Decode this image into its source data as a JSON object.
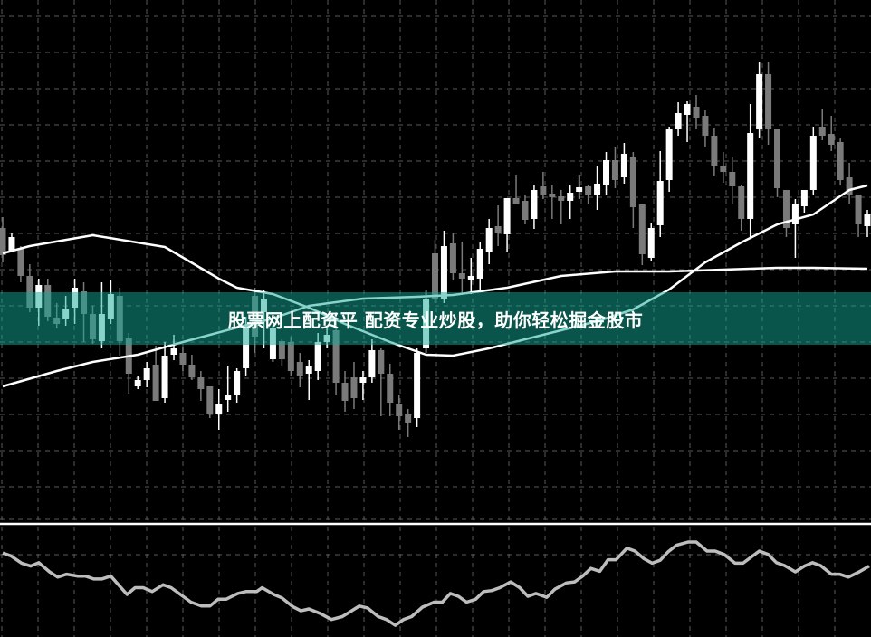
{
  "banner": {
    "text": "股票网上配资平 配资专业炒股，助你轻松掘金股市"
  },
  "colors": {
    "background": "#000000",
    "grid": "#5a5a5a",
    "up_candle": "#ffffff",
    "down_candle": "#7a7a7a",
    "ma_line": "#ffffff",
    "oscillator_line": "#bdbdbd",
    "separator": "#ffffff",
    "banner": "#14aa96"
  },
  "chart_data": [
    {
      "type": "candlestick",
      "title": "",
      "grid": true,
      "ylim": [
        2,
        60
      ],
      "candles_ohlc": [
        [
          34.8,
          36,
          31,
          31.8
        ],
        [
          32.3,
          34.2,
          32.3,
          33.8
        ],
        [
          32.5,
          32.8,
          28.8,
          29.5
        ],
        [
          29.5,
          30.8,
          25.5,
          26
        ],
        [
          26,
          29.2,
          24,
          28.5
        ],
        [
          28.5,
          29.2,
          24.5,
          25
        ],
        [
          24.9,
          26.5,
          23.7,
          24.2
        ],
        [
          24.7,
          27.3,
          24,
          25.9
        ],
        [
          26,
          29.2,
          24.2,
          28.2
        ],
        [
          27.8,
          28.8,
          22.2,
          25.3
        ],
        [
          25.3,
          26.2,
          22,
          22.5
        ],
        [
          22.3,
          28.8,
          21.5,
          25.3
        ],
        [
          24.8,
          29,
          24.2,
          27.5
        ],
        [
          27.3,
          28.2,
          20.7,
          22.3
        ],
        [
          22.6,
          23.2,
          16.5,
          18.7
        ],
        [
          17.3,
          18.4,
          17,
          18
        ],
        [
          18,
          20,
          17.2,
          19.3
        ],
        [
          19.7,
          21.8,
          15.7,
          15.7
        ],
        [
          16,
          22.2,
          15.5,
          20.7
        ],
        [
          20.8,
          23,
          20.2,
          21.5
        ],
        [
          21,
          21.7,
          19,
          19.7
        ],
        [
          19.7,
          20.8,
          18,
          18.3
        ],
        [
          18.3,
          19,
          15.7,
          17
        ],
        [
          17.3,
          17.3,
          13.8,
          14.3
        ],
        [
          14.3,
          17,
          12.5,
          15.3
        ],
        [
          15.8,
          19.5,
          14.5,
          16.3
        ],
        [
          16.3,
          19.3,
          15.5,
          19
        ],
        [
          19.3,
          25,
          18.5,
          24
        ],
        [
          27.3,
          28.2,
          21,
          22.8
        ],
        [
          25.5,
          28,
          21.5,
          27
        ],
        [
          20.3,
          24,
          20,
          23.7
        ],
        [
          22.3,
          22.5,
          19.5,
          20.3
        ],
        [
          22.2,
          22.8,
          18.5,
          19
        ],
        [
          20,
          21,
          17.2,
          18.5
        ],
        [
          18.7,
          20.2,
          15.8,
          19.5
        ],
        [
          19,
          23.2,
          18,
          22.2
        ],
        [
          22.2,
          23.8,
          21.5,
          23
        ],
        [
          23.5,
          25.5,
          16.4,
          17.7
        ],
        [
          17.7,
          19,
          14.5,
          15.7
        ],
        [
          18.3,
          20,
          14.8,
          16
        ],
        [
          17.7,
          19,
          15.8,
          18.3
        ],
        [
          18.3,
          22.5,
          17.7,
          21.3
        ],
        [
          21.3,
          21.5,
          14,
          18.7
        ],
        [
          18.7,
          19.8,
          14,
          15.5
        ],
        [
          15.3,
          16.3,
          12.5,
          14
        ],
        [
          14.3,
          14.8,
          11.7,
          13.3
        ],
        [
          13.8,
          21.5,
          12.8,
          21
        ],
        [
          21.5,
          28,
          21,
          27
        ],
        [
          32,
          33.5,
          26.5,
          27
        ],
        [
          27,
          34.5,
          26.5,
          32.8
        ],
        [
          33.1,
          34.2,
          29,
          29.8
        ],
        [
          29.8,
          33.3,
          27.5,
          29.2
        ],
        [
          29,
          31.5,
          27.5,
          29.5
        ],
        [
          29.2,
          33.2,
          27.8,
          32.5
        ],
        [
          32.2,
          35.8,
          30.8,
          34.8
        ],
        [
          35,
          37.3,
          32.8,
          34.2
        ],
        [
          34.1,
          38.1,
          32.2,
          38.1
        ],
        [
          38.1,
          40.7,
          37.4,
          37.4
        ],
        [
          37.8,
          38.5,
          35.2,
          35.7
        ],
        [
          35.8,
          39.5,
          34.7,
          39
        ],
        [
          39.4,
          41,
          38,
          38.5
        ],
        [
          38.6,
          39.5,
          35.8,
          38.2
        ],
        [
          38.3,
          39,
          35.2,
          37.8
        ],
        [
          37.8,
          39.5,
          35.8,
          38.7
        ],
        [
          38.8,
          40.7,
          38,
          39.3
        ],
        [
          39.4,
          39.5,
          37.5,
          38.5
        ],
        [
          38.5,
          41.7,
          36.8,
          39.7
        ],
        [
          39.5,
          43.2,
          38.5,
          42.3
        ],
        [
          42.3,
          43.7,
          39.2,
          40.1
        ],
        [
          40.4,
          44.2,
          39.7,
          43
        ],
        [
          42.7,
          43.2,
          34.8,
          37.1
        ],
        [
          37.4,
          37.4,
          30.7,
          31.9
        ],
        [
          31.5,
          35.3,
          31.2,
          34.8
        ],
        [
          35.1,
          43.3,
          33.8,
          40
        ],
        [
          40.1,
          46,
          38.8,
          45.7
        ],
        [
          45.7,
          48.7,
          45,
          47.5
        ],
        [
          47.3,
          48.8,
          44.3,
          48.5
        ],
        [
          48.2,
          49.5,
          45.7,
          47
        ],
        [
          47.2,
          47.8,
          43.7,
          45
        ],
        [
          45,
          45.8,
          40.5,
          41.7
        ],
        [
          41.7,
          43.2,
          39.8,
          41
        ],
        [
          41,
          42.7,
          37.5,
          39.4
        ],
        [
          39.4,
          39.5,
          34.5,
          35.8
        ],
        [
          35.8,
          48.5,
          33.8,
          45.3
        ],
        [
          45.7,
          53.2,
          44.7,
          51.8
        ],
        [
          51.8,
          53.2,
          44,
          45.7
        ],
        [
          45.7,
          45.7,
          38.2,
          39.2
        ],
        [
          39,
          39,
          33.8,
          34.8
        ],
        [
          35.2,
          38,
          31.5,
          37.4
        ],
        [
          37.2,
          39,
          36.5,
          39
        ],
        [
          39,
          46,
          38.5,
          45
        ],
        [
          46,
          48,
          44.5,
          45
        ],
        [
          45.2,
          47.2,
          43.3,
          44
        ],
        [
          44.3,
          44.7,
          39.5,
          40.1
        ],
        [
          40.4,
          42,
          37.5,
          38.5
        ],
        [
          38.5,
          38.5,
          33.8,
          35.2
        ],
        [
          35,
          36.8,
          33.8,
          36.3
        ]
      ],
      "moving_averages": [
        {
          "points": [
            [
              0,
              32
            ],
            [
              3,
              32.8
            ],
            [
              10,
              34
            ],
            [
              18,
              32.7
            ],
            [
              24,
              29.2
            ],
            [
              26,
              28.2
            ],
            [
              30,
              27.5
            ],
            [
              34,
              26
            ],
            [
              38,
              24.2
            ],
            [
              43,
              22.2
            ],
            [
              47,
              20.8
            ],
            [
              50,
              20.7
            ],
            [
              54,
              21.5
            ],
            [
              60,
              23
            ],
            [
              66,
              24.5
            ],
            [
              70,
              25.8
            ],
            [
              74,
              28
            ],
            [
              78,
              31
            ],
            [
              82,
              33.2
            ],
            [
              86,
              35.2
            ],
            [
              90,
              36.3
            ],
            [
              94,
              39
            ],
            [
              96,
              39.5
            ]
          ]
        },
        {
          "points": [
            [
              0,
              17.3
            ],
            [
              6,
              19
            ],
            [
              10,
              20
            ],
            [
              15,
              20.8
            ],
            [
              20,
              22.2
            ],
            [
              26,
              23.8
            ],
            [
              30,
              24.8
            ],
            [
              34,
              26.2
            ],
            [
              40,
              27
            ],
            [
              46,
              27.2
            ],
            [
              50,
              27.4
            ],
            [
              56,
              28.2
            ],
            [
              62,
              29.5
            ],
            [
              68,
              30
            ],
            [
              74,
              30
            ],
            [
              80,
              30.2
            ],
            [
              86,
              30.4
            ],
            [
              90,
              30.4
            ],
            [
              96,
              30.3
            ]
          ]
        }
      ]
    },
    {
      "type": "line",
      "title": "",
      "grid": true,
      "ylim": [
        0,
        100
      ],
      "points": [
        [
          0,
          66.3
        ],
        [
          0.9,
          63.8
        ],
        [
          2.1,
          57.5
        ],
        [
          3.1,
          55
        ],
        [
          4,
          58
        ],
        [
          5.2,
          50
        ],
        [
          6.1,
          45.5
        ],
        [
          7.1,
          48
        ],
        [
          8.3,
          46.3
        ],
        [
          9.2,
          46.3
        ],
        [
          10.1,
          43.8
        ],
        [
          11,
          43.8
        ],
        [
          12,
          46.3
        ],
        [
          13.8,
          30.5
        ],
        [
          14.7,
          36.3
        ],
        [
          15.6,
          36.3
        ],
        [
          16.6,
          33
        ],
        [
          17.8,
          38.8
        ],
        [
          18.7,
          36.3
        ],
        [
          20.9,
          23.8
        ],
        [
          22.1,
          20.5
        ],
        [
          23,
          20.5
        ],
        [
          23.9,
          26.3
        ],
        [
          24.8,
          26.3
        ],
        [
          26.1,
          31.3
        ],
        [
          27,
          33
        ],
        [
          28.2,
          33
        ],
        [
          28.8,
          36.3
        ],
        [
          30.1,
          30.5
        ],
        [
          31,
          27.5
        ],
        [
          32.2,
          20
        ],
        [
          33.1,
          16.3
        ],
        [
          34,
          18
        ],
        [
          35.3,
          13.8
        ],
        [
          36.5,
          8.8
        ],
        [
          37.7,
          11.3
        ],
        [
          39.6,
          20.5
        ],
        [
          40.5,
          18.8
        ],
        [
          41.7,
          11.3
        ],
        [
          42.6,
          8.8
        ],
        [
          43.6,
          3.8
        ],
        [
          44.5,
          8.8
        ],
        [
          45.4,
          11.3
        ],
        [
          46.6,
          19.5
        ],
        [
          47.9,
          23.8
        ],
        [
          48.8,
          23.8
        ],
        [
          49.7,
          31.3
        ],
        [
          50.6,
          28.8
        ],
        [
          51.5,
          23.8
        ],
        [
          52.5,
          26.3
        ],
        [
          53.4,
          33
        ],
        [
          54.3,
          33.8
        ],
        [
          55.2,
          36.3
        ],
        [
          56.4,
          41.3
        ],
        [
          57.4,
          36.3
        ],
        [
          58.3,
          28.8
        ],
        [
          59.2,
          31.3
        ],
        [
          60.4,
          28
        ],
        [
          61.3,
          35
        ],
        [
          62.6,
          40.5
        ],
        [
          63.5,
          41.3
        ],
        [
          64.4,
          46.3
        ],
        [
          65.3,
          53
        ],
        [
          66.3,
          50.5
        ],
        [
          67.2,
          60.5
        ],
        [
          68.1,
          60.5
        ],
        [
          69.3,
          70.5
        ],
        [
          70.2,
          68
        ],
        [
          71.2,
          61.3
        ],
        [
          72.1,
          57.5
        ],
        [
          73,
          60
        ],
        [
          73.9,
          67.5
        ],
        [
          74.8,
          73
        ],
        [
          76.1,
          75.8
        ],
        [
          77,
          75.8
        ],
        [
          78.2,
          68
        ],
        [
          79.1,
          68
        ],
        [
          80.1,
          65
        ],
        [
          81.3,
          57.5
        ],
        [
          82.2,
          57.5
        ],
        [
          84,
          68
        ],
        [
          85,
          65
        ],
        [
          85.9,
          58
        ],
        [
          86.8,
          55.5
        ],
        [
          88,
          50
        ],
        [
          89,
          55
        ],
        [
          89.9,
          58
        ],
        [
          90.8,
          55.5
        ],
        [
          92,
          48
        ],
        [
          92.9,
          48
        ],
        [
          93.9,
          45.5
        ],
        [
          95.1,
          50
        ],
        [
          96.2,
          55
        ]
      ]
    }
  ]
}
